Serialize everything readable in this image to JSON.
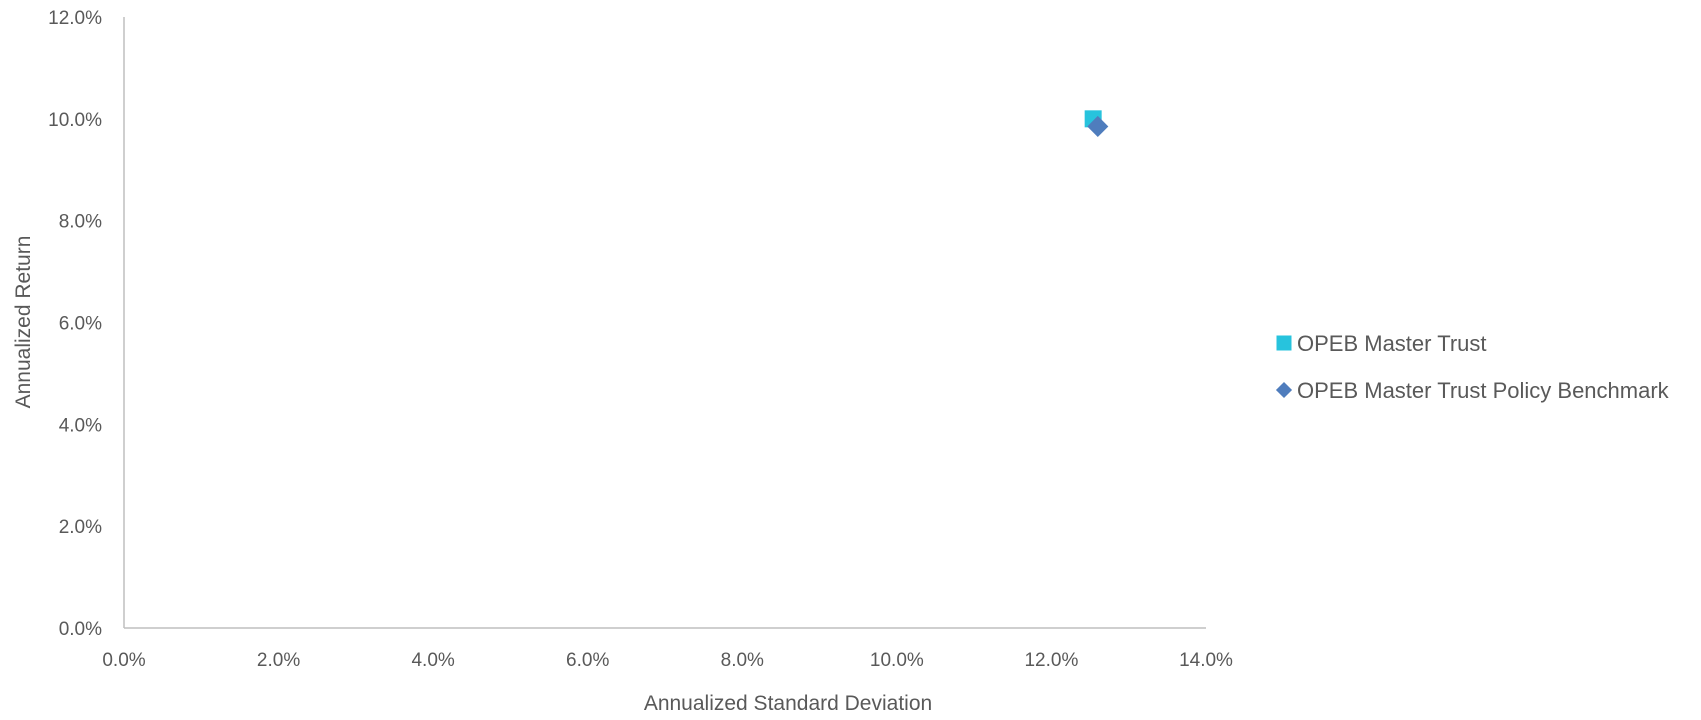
{
  "chart_data": {
    "type": "scatter",
    "title": "",
    "xlabel": "Annualized Standard Deviation",
    "ylabel": "Annualized Return",
    "xlim": [
      0,
      14
    ],
    "ylim": [
      0,
      12
    ],
    "x_ticks": [
      "0.0%",
      "2.0%",
      "4.0%",
      "6.0%",
      "8.0%",
      "10.0%",
      "12.0%",
      "14.0%"
    ],
    "y_ticks": [
      "0.0%",
      "2.0%",
      "4.0%",
      "6.0%",
      "8.0%",
      "10.0%",
      "12.0%"
    ],
    "x_tick_values": [
      0,
      2,
      4,
      6,
      8,
      10,
      12,
      14
    ],
    "y_tick_values": [
      0,
      2,
      4,
      6,
      8,
      10,
      12
    ],
    "grid": false,
    "legend_position": "right",
    "series": [
      {
        "name": "OPEB Master Trust",
        "marker": "square",
        "color": "#27C3DD",
        "points": [
          {
            "x": 12.54,
            "y": 10.0
          }
        ]
      },
      {
        "name": "OPEB Master Trust Policy Benchmark",
        "marker": "diamond",
        "color": "#4F7DBD",
        "points": [
          {
            "x": 12.6,
            "y": 9.85
          }
        ]
      }
    ],
    "colors": {
      "axis": "#BFBFBF",
      "text": "#595959"
    }
  }
}
